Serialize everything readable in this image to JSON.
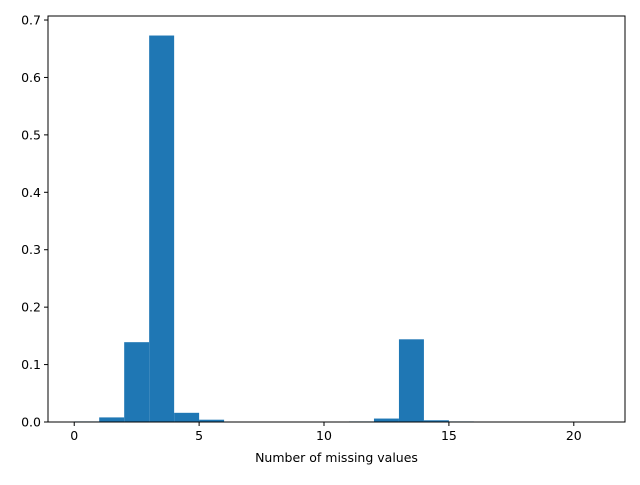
{
  "chart_data": {
    "type": "bar",
    "title": "",
    "xlabel": "Number of missing values",
    "ylabel": "",
    "xlim": [
      -1.05,
      22.05
    ],
    "ylim": [
      0,
      0.707
    ],
    "bar_color": "#1f77b4",
    "grid": false,
    "bin_width": 1,
    "bins": [
      {
        "x0": 0,
        "value": 0.001
      },
      {
        "x0": 1,
        "value": 0.008
      },
      {
        "x0": 2,
        "value": 0.139
      },
      {
        "x0": 3,
        "value": 0.673
      },
      {
        "x0": 4,
        "value": 0.016
      },
      {
        "x0": 5,
        "value": 0.004
      },
      {
        "x0": 6,
        "value": 0.0
      },
      {
        "x0": 7,
        "value": 0.0
      },
      {
        "x0": 8,
        "value": 0.0
      },
      {
        "x0": 9,
        "value": 0.0
      },
      {
        "x0": 10,
        "value": 0.0
      },
      {
        "x0": 11,
        "value": 0.001
      },
      {
        "x0": 12,
        "value": 0.006
      },
      {
        "x0": 13,
        "value": 0.144
      },
      {
        "x0": 14,
        "value": 0.003
      },
      {
        "x0": 15,
        "value": 0.001
      },
      {
        "x0": 16,
        "value": 0.0
      },
      {
        "x0": 17,
        "value": 0.0
      },
      {
        "x0": 18,
        "value": 0.0
      },
      {
        "x0": 19,
        "value": 0.0
      },
      {
        "x0": 20,
        "value": 0.0
      }
    ],
    "x_ticks": [
      0,
      5,
      10,
      15,
      20
    ],
    "x_tick_labels": [
      "0",
      "5",
      "10",
      "15",
      "20"
    ],
    "y_ticks": [
      0,
      0.1,
      0.2,
      0.3,
      0.4,
      0.5,
      0.6,
      0.7
    ],
    "y_tick_labels": [
      "0.0",
      "0.1",
      "0.2",
      "0.3",
      "0.4",
      "0.5",
      "0.6",
      "0.7"
    ]
  }
}
